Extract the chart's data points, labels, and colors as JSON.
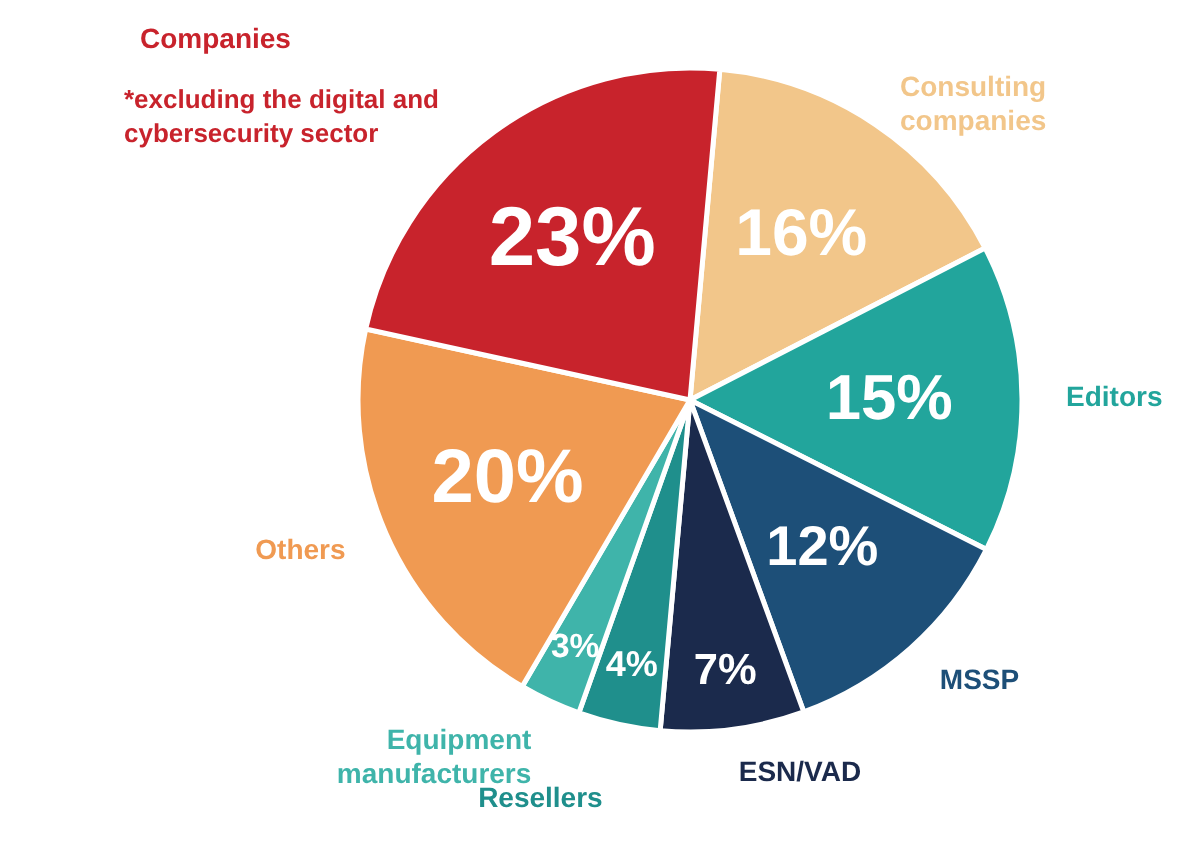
{
  "chart_data": {
    "type": "pie",
    "categories": [
      "Consulting companies",
      "Editors",
      "MSSP",
      "ESN/VAD",
      "Resellers",
      "Equipment manufacturers",
      "Others",
      "Companies"
    ],
    "values": [
      16,
      15,
      12,
      7,
      4,
      3,
      20,
      23
    ],
    "value_labels": [
      "16%",
      "15%",
      "12%",
      "7%",
      "4%",
      "3%",
      "20%",
      "23%"
    ],
    "colors": [
      "#f2c68a",
      "#22a59c",
      "#1d4f78",
      "#1b2a4c",
      "#1f8f8c",
      "#3fb4aa",
      "#f09a52",
      "#c8232c"
    ],
    "annotations": [
      "*excluding the digital and cybersecurity sector"
    ]
  }
}
